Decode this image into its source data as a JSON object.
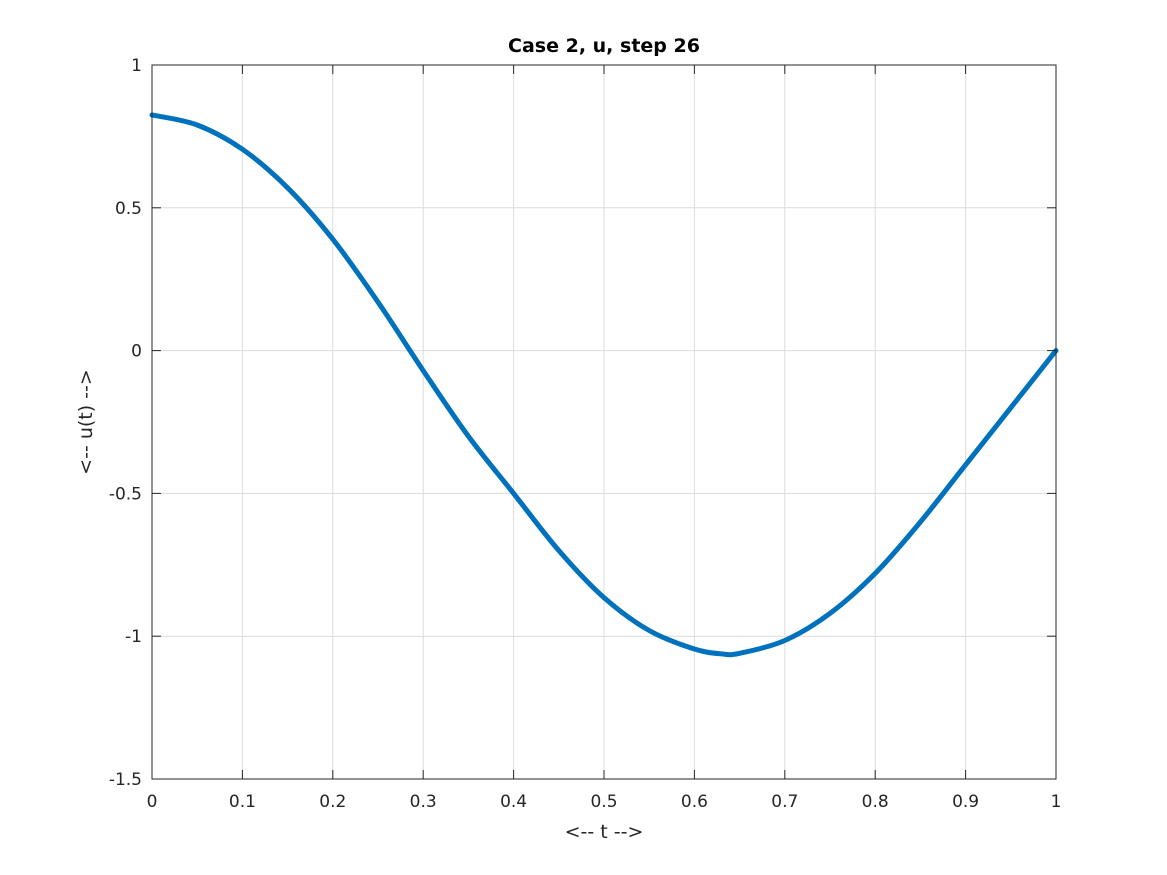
{
  "chart_data": {
    "type": "line",
    "title": "Case 2, u, step 26",
    "xlabel": "<-- t -->",
    "ylabel": "<-- u(t) -->",
    "xlim": [
      0,
      1
    ],
    "ylim": [
      -1.5,
      1
    ],
    "xticks": [
      0,
      0.1,
      0.2,
      0.3,
      0.4,
      0.5,
      0.6,
      0.7,
      0.8,
      0.9,
      1
    ],
    "xtick_labels": [
      "0",
      "0.1",
      "0.2",
      "0.3",
      "0.4",
      "0.5",
      "0.6",
      "0.7",
      "0.8",
      "0.9",
      "1"
    ],
    "yticks": [
      -1.5,
      -1,
      -0.5,
      0,
      0.5,
      1
    ],
    "ytick_labels": [
      "-1.5",
      "-1",
      "-0.5",
      "0",
      "0.5",
      "1"
    ],
    "grid": true,
    "series_color": "#0072BD",
    "series": [
      {
        "x": [
          0,
          0.05,
          0.1,
          0.15,
          0.2,
          0.25,
          0.3,
          0.35,
          0.4,
          0.45,
          0.5,
          0.55,
          0.6,
          0.63,
          0.65,
          0.7,
          0.75,
          0.8,
          0.85,
          0.9,
          0.95,
          1.0
        ],
        "y": [
          0.825,
          0.79,
          0.705,
          0.57,
          0.39,
          0.17,
          -0.07,
          -0.3,
          -0.5,
          -0.7,
          -0.865,
          -0.98,
          -1.045,
          -1.062,
          -1.06,
          -1.015,
          -0.92,
          -0.78,
          -0.6,
          -0.4,
          -0.2,
          0.0
        ]
      }
    ]
  }
}
